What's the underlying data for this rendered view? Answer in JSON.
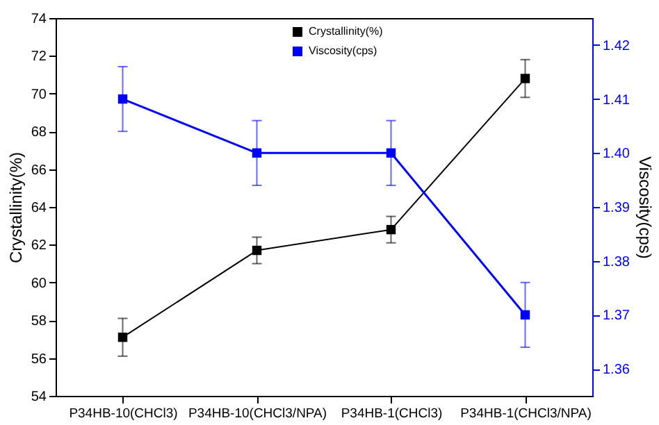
{
  "chart_data": {
    "type": "line",
    "ylabel": "Crystallinity(%)",
    "y2label": "Viscosity(cps)",
    "categories": [
      "P34HB-10(CHCl3)",
      "P34HB-10(CHCl3/NPA)",
      "P34HB-1(CHCl3)",
      "P34HB-1(CHCl3/NPA)"
    ],
    "series": [
      {
        "name": "Crystallinity(%)",
        "color": "#000000",
        "values": [
          57.1,
          61.7,
          62.8,
          70.8
        ],
        "errors": [
          1.0,
          0.7,
          0.7,
          1.0
        ]
      },
      {
        "name": "Viscosity(cps)",
        "color": "#0000ff",
        "axis": "y2",
        "values": [
          1.41,
          1.4,
          1.4,
          1.37
        ],
        "errors": [
          0.006,
          0.006,
          0.006,
          0.006
        ]
      }
    ],
    "ylim": [
      54,
      74
    ],
    "yticks": [
      54,
      56,
      58,
      60,
      62,
      64,
      66,
      68,
      70,
      72,
      74
    ],
    "y2lim": [
      1.355,
      1.425
    ],
    "y2ticks": [
      1.36,
      1.37,
      1.38,
      1.39,
      {
        "value": 1.4,
        "label": "1.40"
      },
      1.41,
      1.42
    ],
    "marker": "square",
    "line_style": "solid",
    "grid": false,
    "legend": "top right"
  }
}
